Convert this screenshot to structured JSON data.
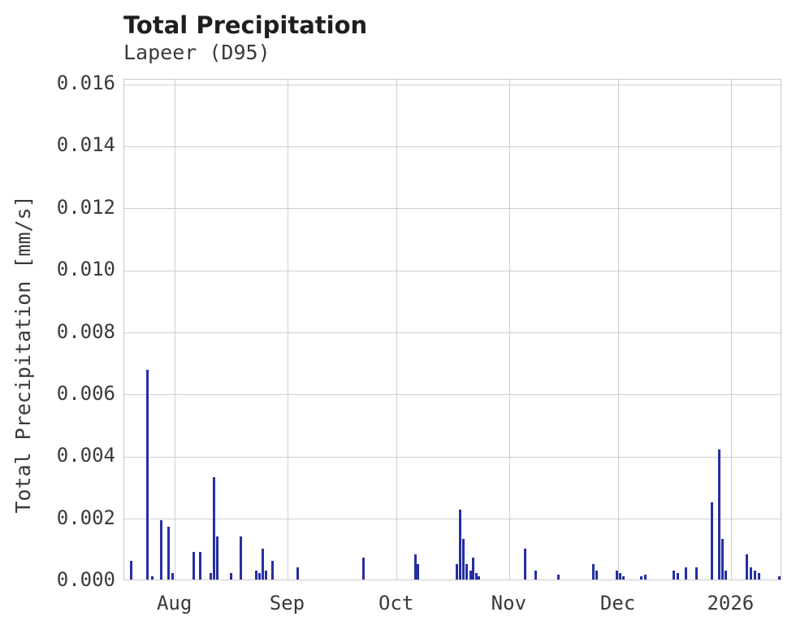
{
  "chart_data": {
    "type": "bar",
    "title": "Total Precipitation",
    "subtitle": "Lapeer (D95)",
    "ylabel": "Total Precipitation [mm/s]",
    "xlabel": "",
    "legend": "none",
    "grid": "on",
    "colors": {
      "bar": "#262fa1",
      "grid": "#d0d0d0",
      "frame": "#c9c9c9",
      "tick_text": "#3a3a3a",
      "title_text": "#1f1f1f",
      "background": "#ffffff"
    },
    "ylim": [
      0,
      0.01616
    ],
    "xlim": [
      0,
      181
    ],
    "y_ticks": {
      "values": [
        0,
        0.002,
        0.004,
        0.006,
        0.008,
        0.01,
        0.012,
        0.014,
        0.016
      ],
      "labels": [
        "0.000",
        "0.002",
        "0.004",
        "0.006",
        "0.008",
        "0.010",
        "0.012",
        "0.014",
        "0.016"
      ]
    },
    "x_ticks": {
      "labels": [
        "Aug",
        "Sep",
        "Oct",
        "Nov",
        "Dec",
        "2026"
      ],
      "positions_days": [
        14,
        45,
        75,
        106,
        136,
        167
      ],
      "description": "x axis is time from mid-July 2025 to mid-January 2026; positions are day offsets from axis start"
    },
    "points_day_value": [
      [
        1.8,
        0.0006
      ],
      [
        6.3,
        0.00675
      ],
      [
        7.6,
        0.0001
      ],
      [
        10.1,
        0.0019
      ],
      [
        12.1,
        0.0017
      ],
      [
        13.2,
        0.0002
      ],
      [
        19.0,
        0.0009
      ],
      [
        21.0,
        0.0009
      ],
      [
        23.9,
        0.0002
      ],
      [
        24.8,
        0.0033
      ],
      [
        25.6,
        0.0014
      ],
      [
        29.3,
        0.0002
      ],
      [
        32.0,
        0.0014
      ],
      [
        36.4,
        0.0003
      ],
      [
        37.2,
        0.0002
      ],
      [
        38.0,
        0.001
      ],
      [
        38.9,
        0.0003
      ],
      [
        40.7,
        0.0006
      ],
      [
        47.8,
        0.0004
      ],
      [
        65.7,
        0.0007
      ],
      [
        80.0,
        0.0008
      ],
      [
        80.8,
        0.0005
      ],
      [
        91.6,
        0.0005
      ],
      [
        92.3,
        0.00225
      ],
      [
        93.2,
        0.0013
      ],
      [
        94.1,
        0.0005
      ],
      [
        95.2,
        0.0003
      ],
      [
        95.9,
        0.0007
      ],
      [
        96.8,
        0.0002
      ],
      [
        97.6,
        0.0001
      ],
      [
        110.2,
        0.001
      ],
      [
        113.1,
        0.0003
      ],
      [
        119.4,
        0.00015
      ],
      [
        129.0,
        0.0005
      ],
      [
        129.9,
        0.0003
      ],
      [
        135.5,
        0.0003
      ],
      [
        136.4,
        0.0002
      ],
      [
        137.3,
        0.0001
      ],
      [
        142.2,
        0.0001
      ],
      [
        143.3,
        0.00015
      ],
      [
        151.1,
        0.0003
      ],
      [
        152.2,
        0.0002
      ],
      [
        154.5,
        0.0004
      ],
      [
        157.4,
        0.0004
      ],
      [
        161.6,
        0.0025
      ],
      [
        163.6,
        0.0042
      ],
      [
        164.5,
        0.0013
      ],
      [
        165.4,
        0.0003
      ],
      [
        171.3,
        0.0008
      ],
      [
        172.4,
        0.0004
      ],
      [
        173.5,
        0.0003
      ],
      [
        174.6,
        0.0002
      ],
      [
        180.2,
        0.0001
      ]
    ]
  }
}
